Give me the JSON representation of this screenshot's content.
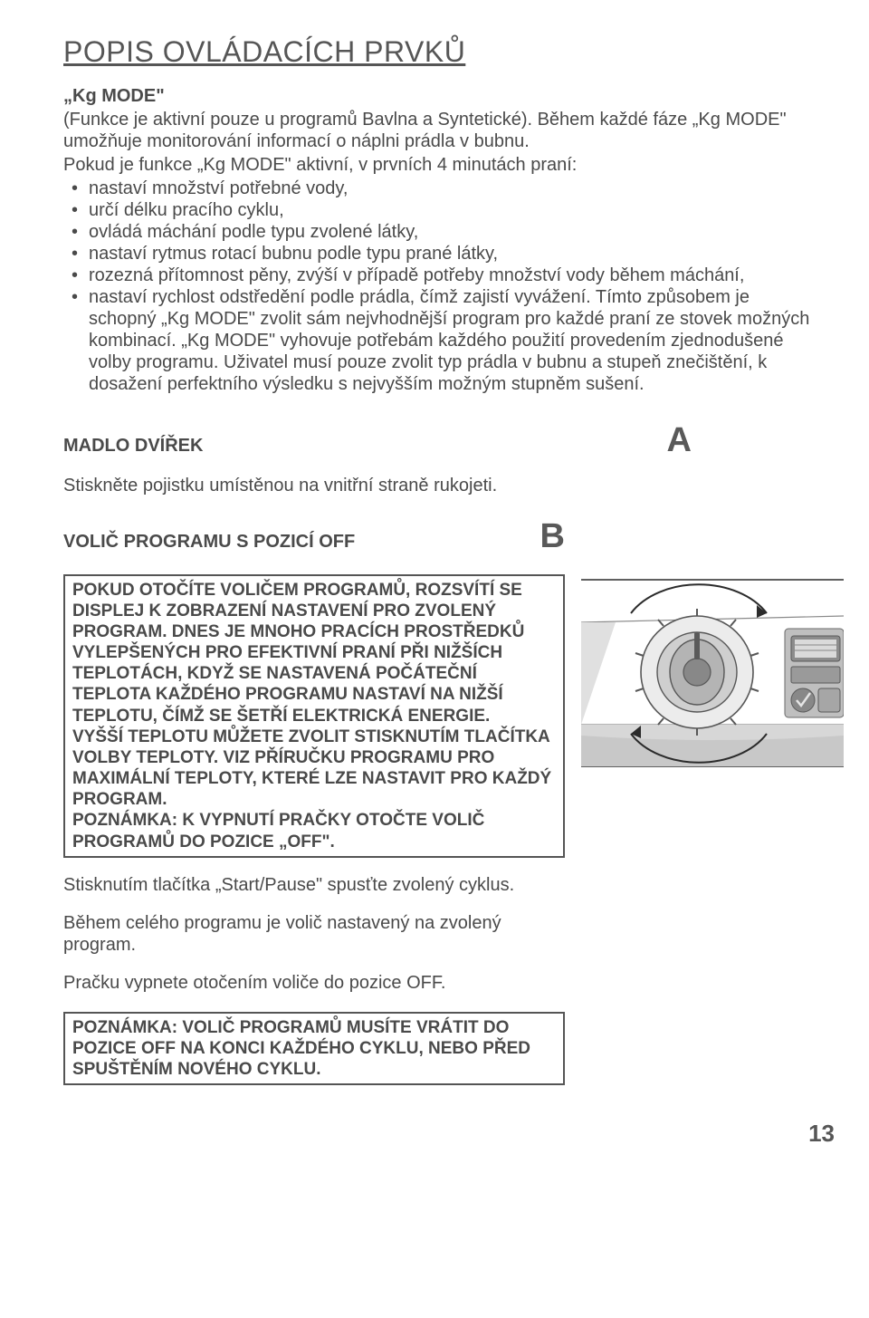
{
  "title": "POPIS OVLÁDACÍCH PRVKŮ",
  "kgmode": {
    "heading": "„Kg MODE\"",
    "p1": "(Funkce je aktivní pouze u programů Bavlna a Syntetické). Během každé fáze „Kg MODE\" umožňuje monitorování informací o náplni prádla v bubnu.",
    "p2": "Pokud je funkce „Kg MODE\" aktivní, v prvních 4 minutách praní:",
    "bullets": [
      "nastaví množství potřebné vody,",
      "určí délku pracího cyklu,",
      "ovládá máchání podle typu zvolené látky,",
      "nastaví rytmus rotací bubnu podle typu prané látky,",
      "rozezná přítomnost pěny, zvýší v případě potřeby množství vody během máchání,",
      "nastaví rychlost odstředění podle prádla, čímž zajistí vyvážení. Tímto způsobem je schopný „Kg MODE\" zvolit sám nejvhodnější program pro každé praní ze stovek možných kombinací. „Kg MODE\" vyhovuje potřebám každého použití provedením zjednodušené volby programu. Uživatel musí pouze zvolit typ prádla v bubnu a stupeň znečištění, k dosažení perfektního výsledku s nejvyšším možným stupněm sušení."
    ]
  },
  "madlo": {
    "label": "MADLO DVÍŘEK",
    "letter": "A",
    "text": "Stiskněte pojistku umístěnou na vnitřní straně rukojeti."
  },
  "volprog": {
    "label": "VOLIČ PROGRAMU S POZICÍ OFF",
    "letter": "B"
  },
  "box1": "POKUD OTOČÍTE VOLIČEM PROGRAMŮ, ROZSVÍTÍ SE DISPLEJ K ZOBRAZENÍ NASTAVENÍ PRO ZVOLENÝ PROGRAM. DNES JE MNOHO PRACÍCH PROSTŘEDKŮ VYLEPŠENÝCH PRO EFEKTIVNÍ PRANÍ PŘI NIŽŠÍCH TEPLOTÁCH, KDYŽ SE NASTAVENÁ POČÁTEČNÍ TEPLOTA KAŽDÉHO PROGRAMU NASTAVÍ NA NIŽŠÍ TEPLOTU, ČÍMŽ SE ŠETŘÍ ELEKTRICKÁ ENERGIE.\nVYŠŠÍ TEPLOTU MŮŽETE ZVOLIT STISKNUTÍM TLAČÍTKA VOLBY TEPLOTY. VIZ PŘÍRUČKU PROGRAMU PRO MAXIMÁLNÍ TEPLOTY, KTERÉ LZE NASTAVIT PRO KAŽDÝ PROGRAM.\nPOZNÁMKA: K VYPNUTÍ PRAČKY OTOČTE VOLIČ PROGRAMŮ DO POZICE „OFF\".",
  "after_box": [
    "Stisknutím tlačítka „Start/Pause\" spusťte zvolený cyklus.",
    "Během celého programu je volič nastavený na zvolený program.",
    "Pračku vypnete otočením voliče do pozice OFF."
  ],
  "box2": "POZNÁMKA: VOLIČ PROGRAMŮ MUSÍTE VRÁTIT DO POZICE OFF NA KONCI KAŽDÉHO CYKLU, NEBO PŘED SPUŠTĚNÍM NOVÉHO CYKLU.",
  "page_number": "13",
  "colors": {
    "text": "#4a4a4a",
    "border": "#555555",
    "diagram_stroke": "#575757",
    "diagram_fill_mid": "#9a9a9a",
    "diagram_fill_light": "#c8c8c8",
    "diagram_fill_dark": "#707070",
    "diagram_line": "#2b2b2b"
  }
}
